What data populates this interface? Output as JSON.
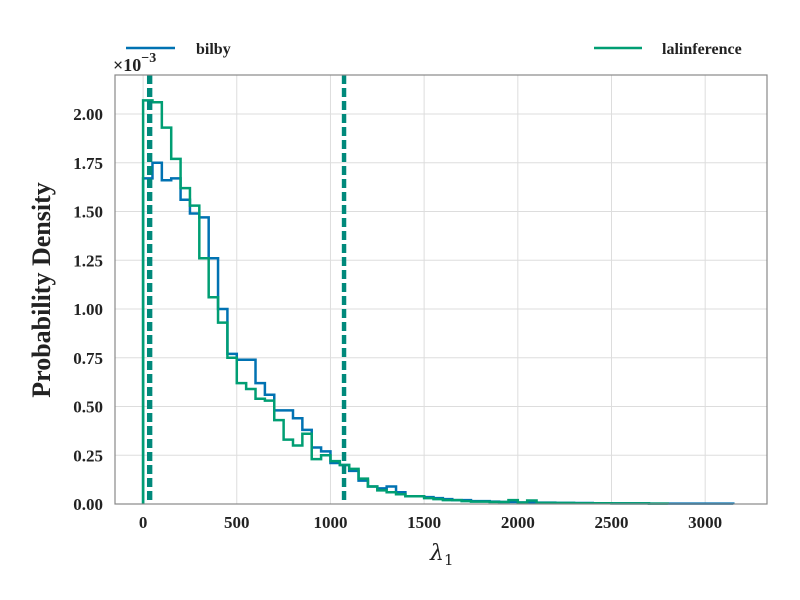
{
  "chart_data": {
    "type": "histogram",
    "title": "",
    "xlabel": "λ1",
    "ylabel": "Probability Density",
    "y_multiplier_label": "×10",
    "y_multiplier_exponent": "−3",
    "xlim": [
      -150,
      3330
    ],
    "ylim": [
      0,
      2.2
    ],
    "xticks": [
      0,
      500,
      1000,
      1500,
      2000,
      2500,
      3000
    ],
    "yticks": [
      "0.00",
      "0.25",
      "0.50",
      "0.75",
      "1.00",
      "1.25",
      "1.50",
      "1.75",
      "2.00"
    ],
    "grid": true,
    "legend": [
      "top-left",
      "top-right"
    ],
    "series": [
      {
        "name": "bilby",
        "color": "#0072b2",
        "bins": [
          [
            0,
            1.67
          ],
          [
            50,
            1.75
          ],
          [
            100,
            1.66
          ],
          [
            150,
            1.67
          ],
          [
            200,
            1.56
          ],
          [
            250,
            1.49
          ],
          [
            300,
            1.47
          ],
          [
            350,
            1.26
          ],
          [
            400,
            1.0
          ],
          [
            450,
            0.77
          ],
          [
            500,
            0.74
          ],
          [
            550,
            0.74
          ],
          [
            600,
            0.62
          ],
          [
            650,
            0.56
          ],
          [
            700,
            0.48
          ],
          [
            750,
            0.48
          ],
          [
            800,
            0.44
          ],
          [
            850,
            0.38
          ],
          [
            900,
            0.29
          ],
          [
            950,
            0.27
          ],
          [
            1000,
            0.21
          ],
          [
            1050,
            0.2
          ],
          [
            1100,
            0.17
          ],
          [
            1150,
            0.12
          ],
          [
            1200,
            0.09
          ],
          [
            1250,
            0.08
          ],
          [
            1300,
            0.09
          ],
          [
            1350,
            0.06
          ],
          [
            1400,
            0.04
          ],
          [
            1450,
            0.04
          ],
          [
            1500,
            0.035
          ],
          [
            1550,
            0.03
          ],
          [
            1600,
            0.025
          ],
          [
            1650,
            0.02
          ],
          [
            1700,
            0.02
          ],
          [
            1750,
            0.015
          ],
          [
            1800,
            0.015
          ],
          [
            1850,
            0.012
          ],
          [
            1900,
            0.01
          ],
          [
            1950,
            0.01
          ],
          [
            2000,
            0.008
          ],
          [
            2100,
            0.007
          ],
          [
            2200,
            0.006
          ],
          [
            2300,
            0.005
          ],
          [
            2400,
            0.004
          ],
          [
            2500,
            0.003
          ],
          [
            2600,
            0.003
          ],
          [
            2700,
            0.002
          ],
          [
            2800,
            0.002
          ],
          [
            2900,
            0.002
          ],
          [
            3000,
            0.002
          ],
          [
            3100,
            0.002
          ],
          [
            3150,
            0
          ]
        ],
        "credible_interval": [
          40,
          1075
        ]
      },
      {
        "name": "lalinference",
        "color": "#009e73",
        "bins": [
          [
            0,
            2.07
          ],
          [
            50,
            2.06
          ],
          [
            100,
            1.93
          ],
          [
            150,
            1.77
          ],
          [
            200,
            1.62
          ],
          [
            250,
            1.53
          ],
          [
            300,
            1.26
          ],
          [
            350,
            1.06
          ],
          [
            400,
            0.93
          ],
          [
            450,
            0.75
          ],
          [
            500,
            0.62
          ],
          [
            550,
            0.59
          ],
          [
            600,
            0.54
          ],
          [
            650,
            0.53
          ],
          [
            700,
            0.43
          ],
          [
            750,
            0.33
          ],
          [
            800,
            0.3
          ],
          [
            850,
            0.36
          ],
          [
            900,
            0.23
          ],
          [
            950,
            0.25
          ],
          [
            1000,
            0.22
          ],
          [
            1050,
            0.2
          ],
          [
            1100,
            0.18
          ],
          [
            1150,
            0.13
          ],
          [
            1200,
            0.09
          ],
          [
            1250,
            0.07
          ],
          [
            1300,
            0.06
          ],
          [
            1350,
            0.05
          ],
          [
            1400,
            0.04
          ],
          [
            1450,
            0.04
          ],
          [
            1500,
            0.03
          ],
          [
            1550,
            0.025
          ],
          [
            1600,
            0.02
          ],
          [
            1650,
            0.02
          ],
          [
            1700,
            0.015
          ],
          [
            1750,
            0.012
          ],
          [
            1800,
            0.012
          ],
          [
            1850,
            0.01
          ],
          [
            1900,
            0.01
          ],
          [
            1950,
            0.02
          ],
          [
            2000,
            0.008
          ],
          [
            2050,
            0.018
          ],
          [
            2100,
            0.006
          ],
          [
            2200,
            0.005
          ],
          [
            2300,
            0.004
          ],
          [
            2400,
            0.004
          ],
          [
            2500,
            0.003
          ],
          [
            2600,
            0.003
          ],
          [
            2700,
            0.002
          ],
          [
            2800,
            0
          ]
        ],
        "credible_interval": [
          30,
          1070
        ]
      }
    ]
  },
  "interval_line_color": "#00897b"
}
